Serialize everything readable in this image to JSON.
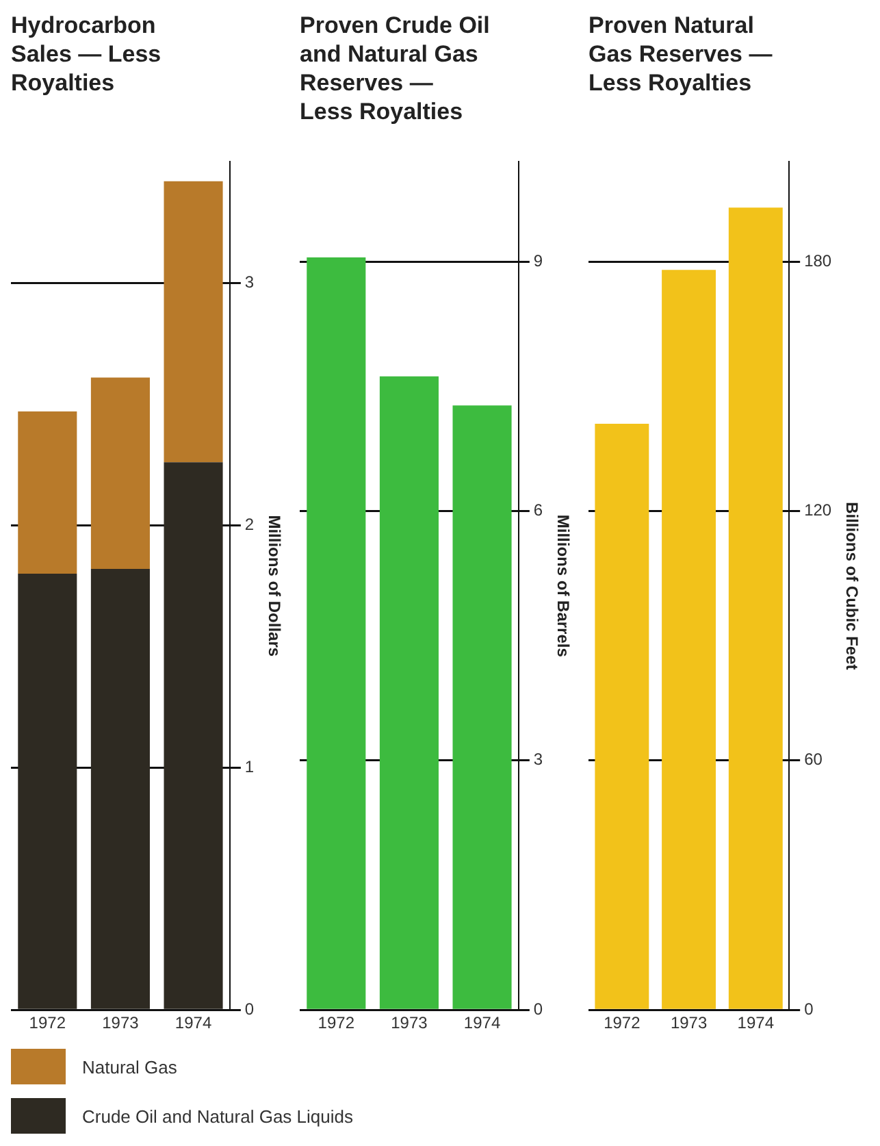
{
  "chart_data": [
    {
      "type": "bar",
      "title": "Hydrocarbon Sales — Less Royalties",
      "ylabel": "Millions of Dollars",
      "categories": [
        "1972",
        "1973",
        "1974"
      ],
      "stacked": true,
      "series": [
        {
          "name": "Crude Oil and Natural Gas Liquids",
          "color": "#2e2a22",
          "values": [
            1.8,
            1.82,
            2.26
          ]
        },
        {
          "name": "Natural Gas",
          "color": "#b87a2a",
          "values": [
            0.67,
            0.79,
            1.16
          ]
        }
      ],
      "ylim": [
        0,
        3.5
      ],
      "yticks": [
        0,
        1,
        2,
        3
      ],
      "grid": "y",
      "legend": "bottom"
    },
    {
      "type": "bar",
      "title": "Proven Crude Oil and Natural Gas Reserves — Less Royalties",
      "ylabel": "Millions of Barrels",
      "categories": [
        "1972",
        "1973",
        "1974"
      ],
      "series": [
        {
          "color": "#3dbb3f",
          "values": [
            9.05,
            7.62,
            7.27
          ]
        }
      ],
      "ylim": [
        0,
        10.2
      ],
      "yticks": [
        0,
        3,
        6,
        9
      ],
      "grid": "y"
    },
    {
      "type": "bar",
      "title": "Proven Natural Gas Reserves — Less Royalties",
      "ylabel": "Billions of Cubic Feet",
      "categories": [
        "1972",
        "1973",
        "1974"
      ],
      "series": [
        {
          "color": "#f2c21a",
          "values": [
            141,
            178,
            193
          ]
        }
      ],
      "ylim": [
        0,
        204
      ],
      "yticks": [
        0,
        60,
        120,
        180
      ],
      "grid": "y"
    }
  ]
}
